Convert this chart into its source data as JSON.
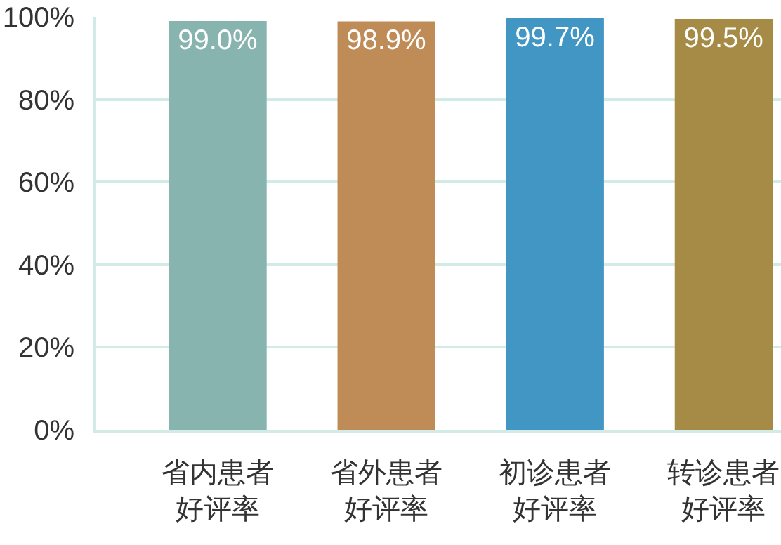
{
  "chart_data": {
    "type": "bar",
    "categories": [
      "省内患者好评率",
      "省外患者好评率",
      "初诊患者好评率",
      "转诊患者好评率"
    ],
    "values": [
      99.0,
      98.9,
      99.7,
      99.5
    ],
    "colors": [
      "#87b4ae",
      "#bf8c58",
      "#4296c4",
      "#a58b45"
    ],
    "value_labels": [
      "99.0%",
      "98.9%",
      "99.7%",
      "99.5%"
    ],
    "ylim": [
      0,
      100
    ],
    "yticks": [
      {
        "value": 0,
        "label": "0%"
      },
      {
        "value": 20,
        "label": "20%"
      },
      {
        "value": 40,
        "label": "40%"
      },
      {
        "value": 60,
        "label": "60%"
      },
      {
        "value": 80,
        "label": "80%"
      },
      {
        "value": 100,
        "label": "100%"
      }
    ],
    "grid": "y"
  }
}
